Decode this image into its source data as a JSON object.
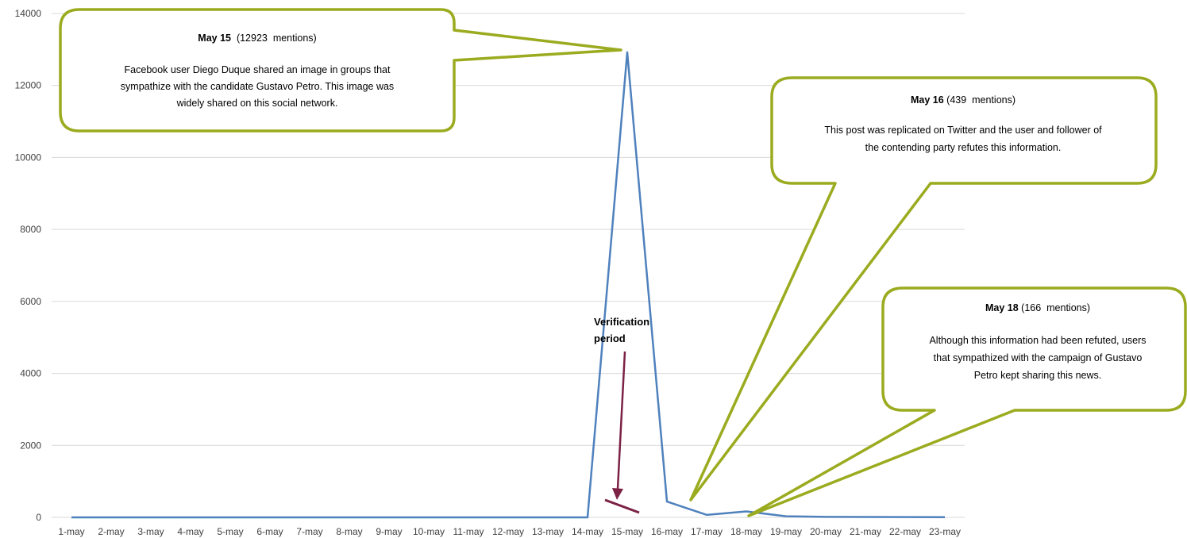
{
  "chart_data": {
    "type": "line",
    "title": "",
    "xlabel": "",
    "ylabel": "",
    "categories": [
      "1-may",
      "2-may",
      "3-may",
      "4-may",
      "5-may",
      "6-may",
      "7-may",
      "8-may",
      "9-may",
      "10-may",
      "11-may",
      "12-may",
      "13-may",
      "14-may",
      "15-may",
      "16-may",
      "17-may",
      "18-may",
      "19-may",
      "20-may",
      "21-may",
      "22-may",
      "23-may"
    ],
    "y_ticks": [
      0,
      2000,
      4000,
      6000,
      8000,
      10000,
      12000,
      14000
    ],
    "y_tick_labels": [
      "0",
      "2000",
      "4000",
      "6000",
      "8000",
      "10000",
      "12000",
      "14000"
    ],
    "ylim": [
      0,
      14000
    ],
    "grid": true,
    "legend": "none",
    "series": [
      {
        "color": "#4f81bd",
        "values": [
          0,
          0,
          0,
          0,
          0,
          0,
          0,
          0,
          0,
          0,
          0,
          0,
          0,
          0,
          12923,
          439,
          70,
          166,
          30,
          15,
          10,
          8,
          5
        ]
      }
    ],
    "annotations": [
      {
        "id": "may15",
        "heading_bold": "May 15",
        "heading_rest": "  (12923  mentions)",
        "lines": [
          "Facebook user Diego Duque shared an image in groups that",
          "sympathize with the candidate Gustavo Petro. This image was",
          "widely shared on this social network."
        ]
      },
      {
        "id": "may16",
        "heading_bold": "May 16",
        "heading_rest": " (439  mentions)",
        "lines": [
          "This post was replicated on Twitter and the user and follower of",
          "the contending party refutes this information."
        ]
      },
      {
        "id": "may18",
        "heading_bold": "May 18",
        "heading_rest": " (166  mentions)",
        "lines": [
          "Although this information had been refuted, users",
          "that sympathized with the campaign of Gustavo",
          "Petro kept sharing this news."
        ]
      }
    ],
    "verification_label": [
      "Verification",
      "period"
    ],
    "colors": {
      "callout_border": "#9bab1f",
      "arrow": "#7b2245",
      "grid": "#d9d9d9"
    }
  }
}
